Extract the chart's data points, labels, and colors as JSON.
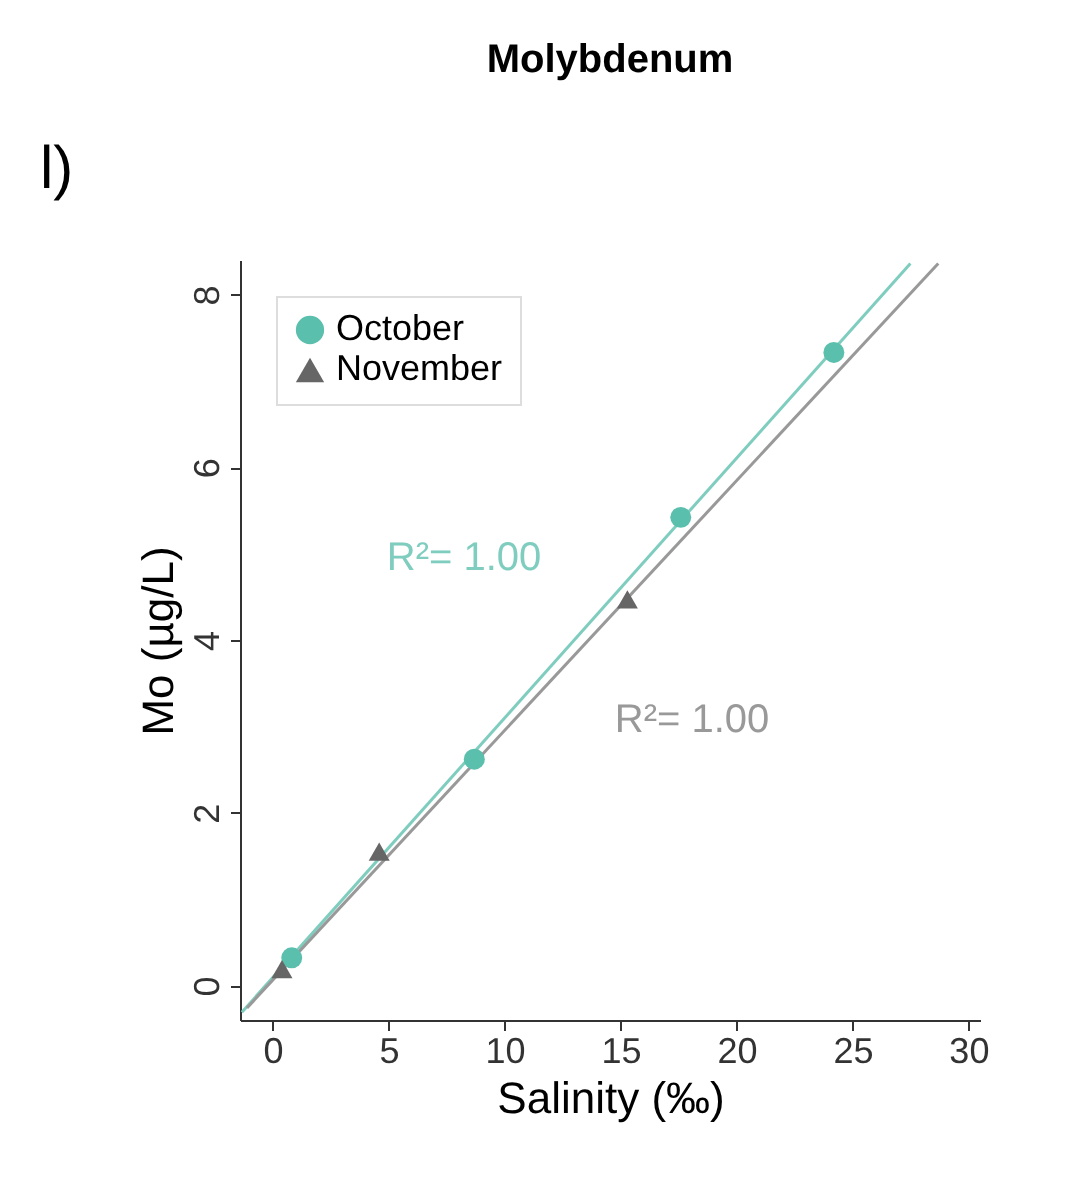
{
  "chart_data": {
    "type": "scatter",
    "title": "Molybdenum",
    "xlabel": "Salinity (‰)",
    "ylabel": "Mo (µg/L)",
    "xlim": [
      -1.4,
      30.5
    ],
    "xticks": [
      0,
      5,
      10,
      15,
      20,
      25,
      30
    ],
    "ylim": [
      -0.4,
      8.4
    ],
    "yticks": [
      0,
      2,
      4,
      6,
      8
    ],
    "grid": false,
    "legend": "top left",
    "series": [
      {
        "name": "October",
        "marker": "circle",
        "color": "#5bbfad",
        "x": [
          0.83,
          8.7,
          17.6,
          24.2
        ],
        "values": [
          0.32,
          2.62,
          5.42,
          7.33
        ]
      },
      {
        "name": "November",
        "marker": "triangle",
        "color": "#666666",
        "x": [
          0.41,
          4.6,
          15.3
        ],
        "values": [
          0.19,
          1.55,
          4.47
        ]
      },
      {
        "type": "line",
        "color": "#7fcdbf",
        "x": [
          -1.32,
          27.5
        ],
        "values": [
          -0.31,
          8.36
        ]
      },
      {
        "type": "line",
        "color": "#999999",
        "x": [
          -1.1,
          28.7
        ],
        "values": [
          -0.26,
          8.36
        ]
      }
    ],
    "annotations": [
      "l)",
      "R²= 1.00",
      "R²= 1.00"
    ]
  }
}
